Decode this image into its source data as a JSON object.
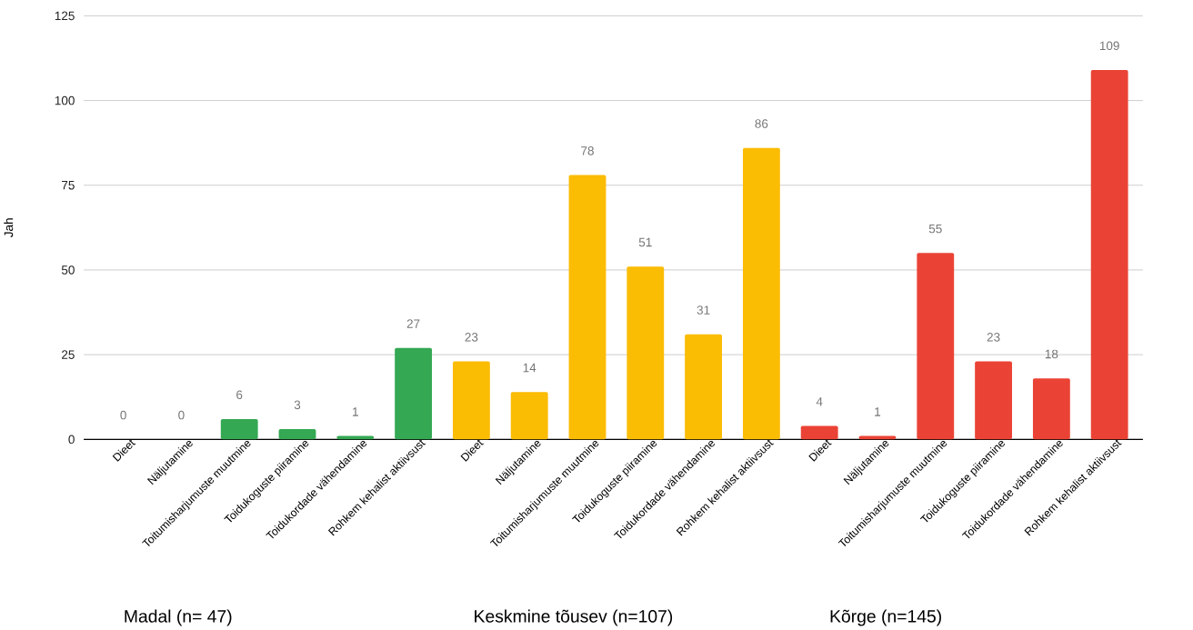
{
  "chart_data": {
    "type": "bar",
    "categories": [
      "Dieet",
      "Näljutamine",
      "Toitumisharjumuste muutmine",
      "Toidukoguste piiramine",
      "Toidukordade vähendamine",
      "Rohkem kehalist aktiivsust",
      "Dieet",
      "Näljutamine",
      "Toitumisharjumuste muutmine",
      "Toidukoguste piiramine",
      "Toidukordade vähendamine",
      "Rohkem kehalist aktiivsust",
      "Dieet",
      "Näljutamine",
      "Toitumisharjumuste muutmine",
      "Toidukoguste piiramine",
      "Toidukordade vähendamine",
      "Rohkem kehalist aktiivsust"
    ],
    "values": [
      0,
      0,
      6,
      3,
      1,
      27,
      23,
      14,
      78,
      51,
      31,
      86,
      4,
      1,
      55,
      23,
      18,
      109
    ],
    "colors": [
      "#34a853",
      "#34a853",
      "#34a853",
      "#34a853",
      "#34a853",
      "#34a853",
      "#fbbc04",
      "#fbbc04",
      "#fbbc04",
      "#fbbc04",
      "#fbbc04",
      "#fbbc04",
      "#ea4335",
      "#ea4335",
      "#ea4335",
      "#ea4335",
      "#ea4335",
      "#ea4335"
    ],
    "ylabel": "Jah",
    "ylim": [
      0,
      125
    ],
    "yticks": [
      0,
      25,
      50,
      75,
      100,
      125
    ],
    "grid": "y",
    "data_labels": true,
    "annotations": [
      "Madal (n= 47)",
      "Keskmine tõusev (n=107)",
      "Kõrge (n=145)"
    ]
  }
}
